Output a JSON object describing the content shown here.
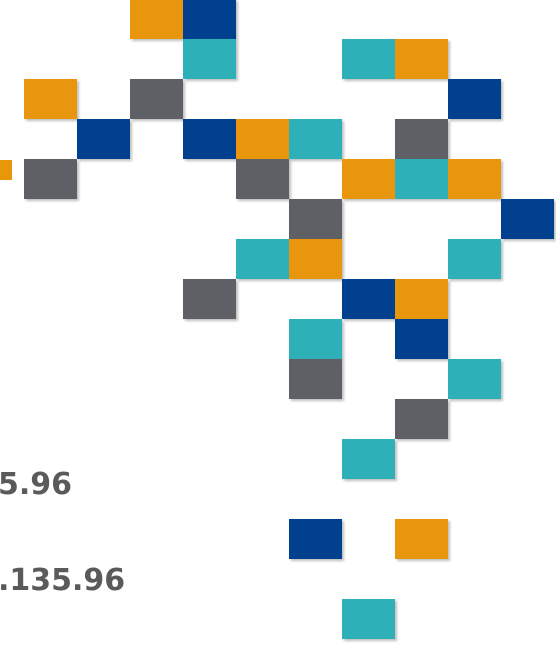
{
  "texts": [
    "5.96",
    ".135.96"
  ]
}
